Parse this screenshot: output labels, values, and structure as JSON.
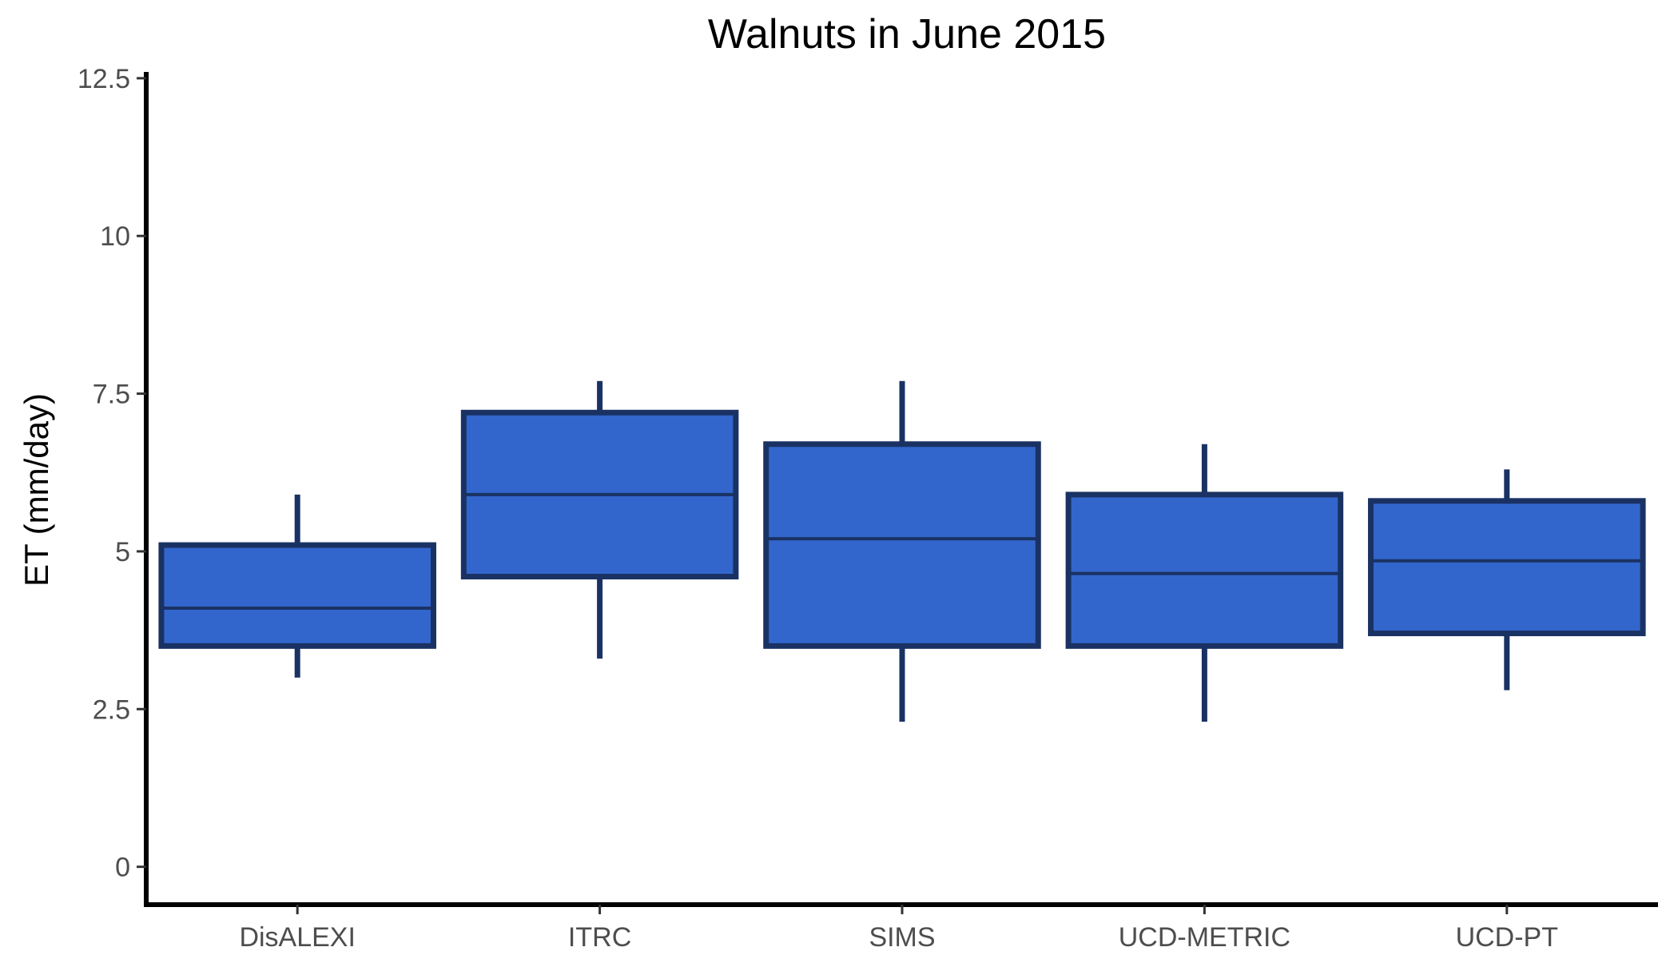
{
  "chart_data": {
    "type": "boxplot",
    "title": "Walnuts in June 2015",
    "xlabel": "",
    "ylabel": "ET (mm/day)",
    "ylim": [
      -0.6,
      12.6
    ],
    "yticks": [
      0,
      2.5,
      5,
      7.5,
      10,
      12.5
    ],
    "ytick_labels": [
      "0",
      "2.5",
      "5",
      "7.5",
      "10",
      "12.5"
    ],
    "grid": false,
    "legend": "none",
    "fill_color": "#3366cc",
    "line_color": "#1a3263",
    "categories": [
      "DisALEXI",
      "ITRC",
      "SIMS",
      "UCD-METRIC",
      "UCD-PT"
    ],
    "boxes": [
      {
        "category": "DisALEXI",
        "whisker_low": 3.0,
        "q1": 3.5,
        "median": 4.1,
        "q3": 5.1,
        "whisker_high": 5.9
      },
      {
        "category": "ITRC",
        "whisker_low": 3.3,
        "q1": 4.6,
        "median": 5.9,
        "q3": 7.2,
        "whisker_high": 7.7
      },
      {
        "category": "SIMS",
        "whisker_low": 2.3,
        "q1": 3.5,
        "median": 5.2,
        "q3": 6.7,
        "whisker_high": 7.7
      },
      {
        "category": "UCD-METRIC",
        "whisker_low": 2.3,
        "q1": 3.5,
        "median": 4.65,
        "q3": 5.9,
        "whisker_high": 6.7
      },
      {
        "category": "UCD-PT",
        "whisker_low": 2.8,
        "q1": 3.7,
        "median": 4.85,
        "q3": 5.8,
        "whisker_high": 6.3
      }
    ]
  }
}
